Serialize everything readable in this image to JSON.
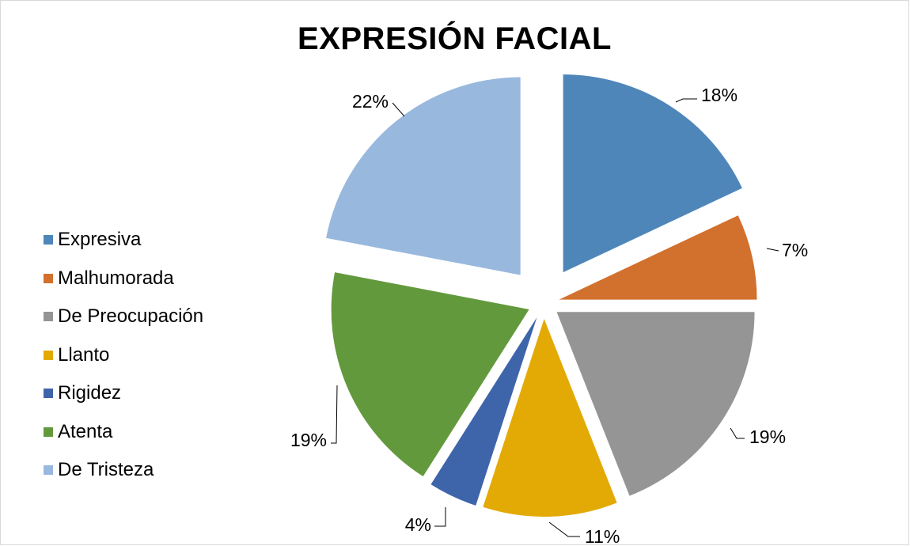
{
  "chart_data": {
    "type": "pie",
    "title": "EXPRESIÓN FACIAL",
    "legend_position": "left",
    "slices": [
      {
        "name": "Expresiva",
        "value": 18,
        "label": "18%",
        "color": "#4f86b9"
      },
      {
        "name": "Malhumorada",
        "value": 7,
        "label": "7%",
        "color": "#d2702d"
      },
      {
        "name": "De Preocupación",
        "value": 19,
        "label": "19%",
        "color": "#959595"
      },
      {
        "name": "Llanto",
        "value": 11,
        "label": "11%",
        "color": "#e3aa06"
      },
      {
        "name": "Rigidez",
        "value": 4,
        "label": "4%",
        "color": "#3e64aa"
      },
      {
        "name": "Atenta",
        "value": 19,
        "label": "19%",
        "color": "#63993d"
      },
      {
        "name": "De Tristeza",
        "value": 22,
        "label": "22%",
        "color": "#99b8de"
      }
    ]
  }
}
